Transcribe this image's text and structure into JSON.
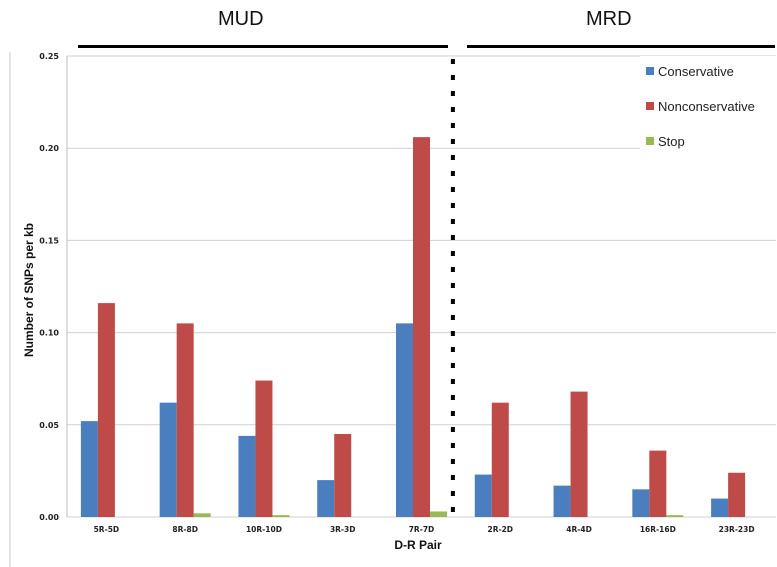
{
  "groups": [
    {
      "label": "MUD"
    },
    {
      "label": "MRD"
    }
  ],
  "chart_data": {
    "type": "bar",
    "title": "",
    "xlabel": "D-R Pair",
    "ylabel": "Number of SNPs per kb",
    "ylim": [
      0,
      0.25
    ],
    "yticks": [
      "0.00",
      "0.05",
      "0.10",
      "0.15",
      "0.20",
      "0.25"
    ],
    "grid": true,
    "legend_position": "top-right",
    "categories": [
      "5R-5D",
      "8R-8D",
      "10R-10D",
      "3R-3D",
      "7R-7D",
      "2R-2D",
      "4R-4D",
      "16R-16D",
      "23R-23D"
    ],
    "series": [
      {
        "name": "Conservative",
        "color": "#4a7ebf",
        "values": [
          0.052,
          0.062,
          0.044,
          0.02,
          0.105,
          0.023,
          0.017,
          0.015,
          0.01
        ]
      },
      {
        "name": "Nonconservative",
        "color": "#be4b48",
        "values": [
          0.116,
          0.105,
          0.074,
          0.045,
          0.206,
          0.062,
          0.068,
          0.036,
          0.024
        ]
      },
      {
        "name": "Stop",
        "color": "#98b954",
        "values": [
          0,
          0.002,
          0.001,
          0,
          0.003,
          0,
          0,
          0.001,
          0
        ]
      }
    ]
  }
}
